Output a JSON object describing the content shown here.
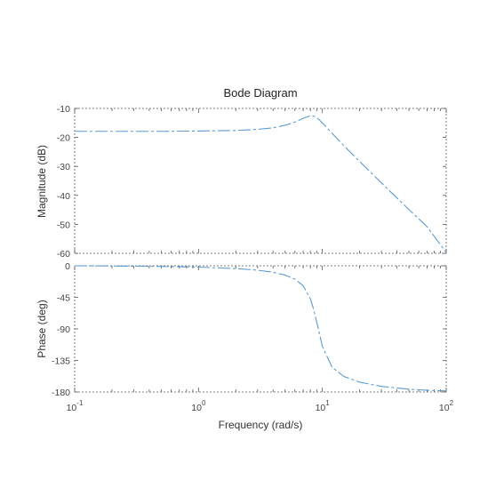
{
  "chart_data": {
    "type": "line",
    "title": "Bode Diagram",
    "xlabel": "Frequency  (rad/s)",
    "xscale": "log",
    "xlim": [
      0.1,
      100
    ],
    "x_ticks": [
      {
        "value": 0.1,
        "base": "10",
        "exp": "-1"
      },
      {
        "value": 1,
        "base": "10",
        "exp": "0"
      },
      {
        "value": 10,
        "base": "10",
        "exp": "1"
      },
      {
        "value": 100,
        "base": "10",
        "exp": "2"
      }
    ],
    "panels": [
      {
        "name": "magnitude",
        "ylabel": "Magnitude (dB)",
        "ylim": [
          -60,
          -10
        ],
        "y_ticks": [
          -10,
          -20,
          -30,
          -40,
          -50,
          -60
        ],
        "series": [
          {
            "x": [
              0.1,
              0.2,
              0.5,
              1,
              2,
              3,
              4,
              5,
              6,
              7,
              8,
              8.5,
              9,
              10,
              12,
              15,
              20,
              30,
              50,
              70,
              100
            ],
            "y": [
              -17.9,
              -17.9,
              -17.9,
              -17.8,
              -17.6,
              -17.2,
              -16.7,
              -15.8,
              -14.7,
              -13.4,
              -12.5,
              -12.6,
              -13.1,
              -15,
              -18.6,
              -23,
              -28.3,
              -35.7,
              -44.9,
              -50.8,
              -59.7
            ]
          }
        ]
      },
      {
        "name": "phase",
        "ylabel": "Phase (deg)",
        "ylim": [
          -180,
          0
        ],
        "y_ticks": [
          0,
          -45,
          -90,
          -135,
          -180
        ],
        "series": [
          {
            "x": [
              0.1,
              0.2,
              0.5,
              1,
              2,
              3,
              4,
              5,
              6,
              7,
              8,
              8.5,
              9,
              10,
              12,
              15,
              20,
              30,
              50,
              70,
              100
            ],
            "y": [
              0,
              -0.3,
              -0.9,
              -1.9,
              -4,
              -6.3,
              -9.2,
              -13.2,
              -19,
              -28.5,
              -47,
              -62,
              -80,
              -115,
              -145,
              -158,
              -166,
              -172,
              -176,
              -177.5,
              -178.5
            ]
          }
        ]
      }
    ]
  }
}
